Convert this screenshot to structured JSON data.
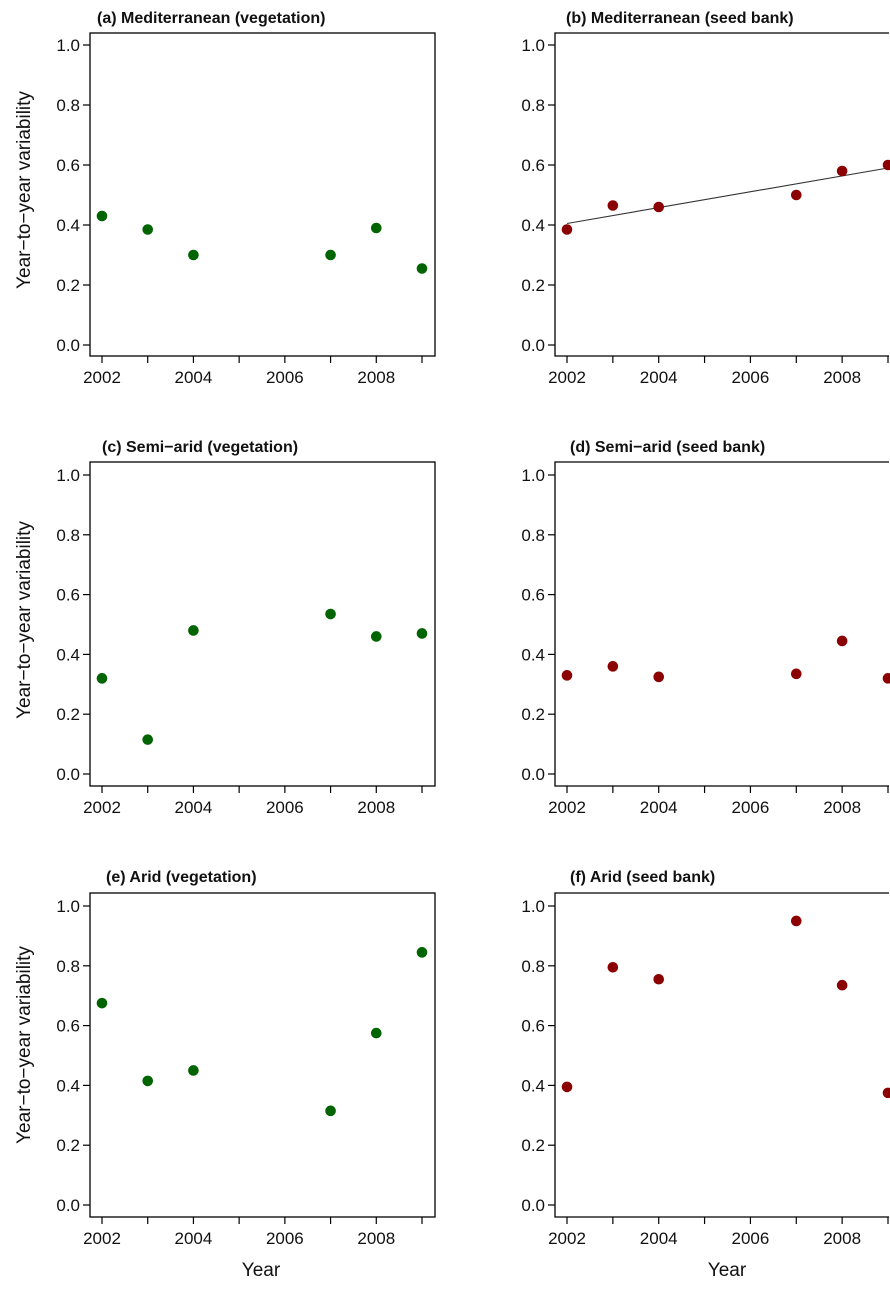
{
  "figure": {
    "ylabel": "Year−to−year variability",
    "xlabel": "Year"
  },
  "chart_data": [
    {
      "type": "scatter",
      "title": "(a) Mediterranean (vegetation)",
      "xlabel": "",
      "ylabel": "Year−to−year variability",
      "x": [
        2002,
        2003,
        2004,
        2007,
        2008,
        2009
      ],
      "y": [
        0.43,
        0.385,
        0.3,
        0.3,
        0.39,
        0.255
      ],
      "xlim": [
        2002,
        2009
      ],
      "ylim": [
        0,
        1.0
      ],
      "xticks": [
        "2002",
        "2004",
        "2006",
        "2008"
      ],
      "yticks": [
        "0.0",
        "0.2",
        "0.4",
        "0.6",
        "0.8",
        "1.0"
      ],
      "marker_color": "#006400",
      "grid": false
    },
    {
      "type": "scatter",
      "title": "(b) Mediterranean (seed bank)",
      "xlabel": "",
      "ylabel": "",
      "x": [
        2002,
        2003,
        2004,
        2007,
        2008,
        2009
      ],
      "y": [
        0.385,
        0.465,
        0.46,
        0.5,
        0.58,
        0.6
      ],
      "trend_line": {
        "x": [
          2002,
          2009
        ],
        "y": [
          0.405,
          0.59
        ]
      },
      "xlim": [
        2002,
        2009
      ],
      "ylim": [
        0,
        1.0
      ],
      "xticks": [
        "2002",
        "2004",
        "2006",
        "2008"
      ],
      "yticks": [
        "0.0",
        "0.2",
        "0.4",
        "0.6",
        "0.8",
        "1.0"
      ],
      "marker_color": "#8b0000",
      "grid": false
    },
    {
      "type": "scatter",
      "title": "(c) Semi−arid (vegetation)",
      "xlabel": "",
      "ylabel": "Year−to−year variability",
      "x": [
        2002,
        2003,
        2004,
        2007,
        2008,
        2009
      ],
      "y": [
        0.32,
        0.115,
        0.48,
        0.535,
        0.46,
        0.47
      ],
      "xlim": [
        2002,
        2009
      ],
      "ylim": [
        0,
        1.0
      ],
      "xticks": [
        "2002",
        "2004",
        "2006",
        "2008"
      ],
      "yticks": [
        "0.0",
        "0.2",
        "0.4",
        "0.6",
        "0.8",
        "1.0"
      ],
      "marker_color": "#006400",
      "grid": false
    },
    {
      "type": "scatter",
      "title": "(d) Semi−arid (seed bank)",
      "xlabel": "",
      "ylabel": "",
      "x": [
        2002,
        2003,
        2004,
        2007,
        2008,
        2009
      ],
      "y": [
        0.33,
        0.36,
        0.325,
        0.335,
        0.445,
        0.32
      ],
      "xlim": [
        2002,
        2009
      ],
      "ylim": [
        0,
        1.0
      ],
      "xticks": [
        "2002",
        "2004",
        "2006",
        "2008"
      ],
      "yticks": [
        "0.0",
        "0.2",
        "0.4",
        "0.6",
        "0.8",
        "1.0"
      ],
      "marker_color": "#8b0000",
      "grid": false
    },
    {
      "type": "scatter",
      "title": "(e) Arid (vegetation)",
      "xlabel": "Year",
      "ylabel": "Year−to−year variability",
      "x": [
        2002,
        2003,
        2004,
        2007,
        2008,
        2009
      ],
      "y": [
        0.675,
        0.415,
        0.45,
        0.315,
        0.575,
        0.845
      ],
      "xlim": [
        2002,
        2009
      ],
      "ylim": [
        0,
        1.0
      ],
      "xticks": [
        "2002",
        "2004",
        "2006",
        "2008"
      ],
      "yticks": [
        "0.0",
        "0.2",
        "0.4",
        "0.6",
        "0.8",
        "1.0"
      ],
      "marker_color": "#006400",
      "grid": false
    },
    {
      "type": "scatter",
      "title": "(f) Arid (seed bank)",
      "xlabel": "Year",
      "ylabel": "",
      "x": [
        2002,
        2003,
        2004,
        2007,
        2008,
        2009
      ],
      "y": [
        0.395,
        0.795,
        0.755,
        0.95,
        0.735,
        0.375
      ],
      "xlim": [
        2002,
        2009
      ],
      "ylim": [
        0,
        1.0
      ],
      "xticks": [
        "2002",
        "2004",
        "2006",
        "2008"
      ],
      "yticks": [
        "0.0",
        "0.2",
        "0.4",
        "0.6",
        "0.8",
        "1.0"
      ],
      "marker_color": "#8b0000",
      "grid": false
    }
  ]
}
